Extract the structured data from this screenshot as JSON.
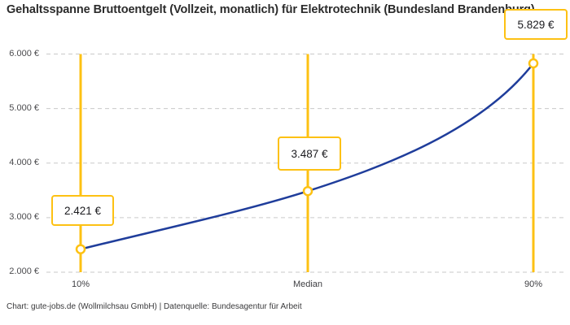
{
  "header": {
    "title": "Gehaltsspanne Bruttoentgelt (Vollzeit, monatlich) für Elektrotechnik (Bundesland Brandenburg)"
  },
  "footer": {
    "credit": "Chart: gute-jobs.de (Wollmilchsau GmbH) | Datenquelle: Bundesagentur für Arbeit"
  },
  "chart_data": {
    "type": "line",
    "title": "Gehaltsspanne Bruttoentgelt (Vollzeit, monatlich) für Elektrotechnik (Bundesland Brandenburg)",
    "categories": [
      "10%",
      "Median",
      "90%"
    ],
    "values": [
      2421,
      3487,
      5829
    ],
    "value_labels": [
      "2.421 €",
      "3.487 €",
      "5.829 €"
    ],
    "yticks": [
      {
        "value": 6000,
        "label": "6.000 €"
      },
      {
        "value": 5000,
        "label": "5.000 €"
      },
      {
        "value": 4000,
        "label": "4.000 €"
      },
      {
        "value": 3000,
        "label": "3.000 €"
      },
      {
        "value": 2000,
        "label": "2.000 €"
      }
    ],
    "ylim": [
      2000,
      6000
    ],
    "xlabel": "",
    "ylabel": "",
    "grid": "horizontal-dashed",
    "legend": "none",
    "colors": {
      "accent_yellow": "#fdc113",
      "curve_blue": "#1f3d9b",
      "gridline_gray": "#c9c9c9",
      "background": "#ffffff"
    }
  }
}
